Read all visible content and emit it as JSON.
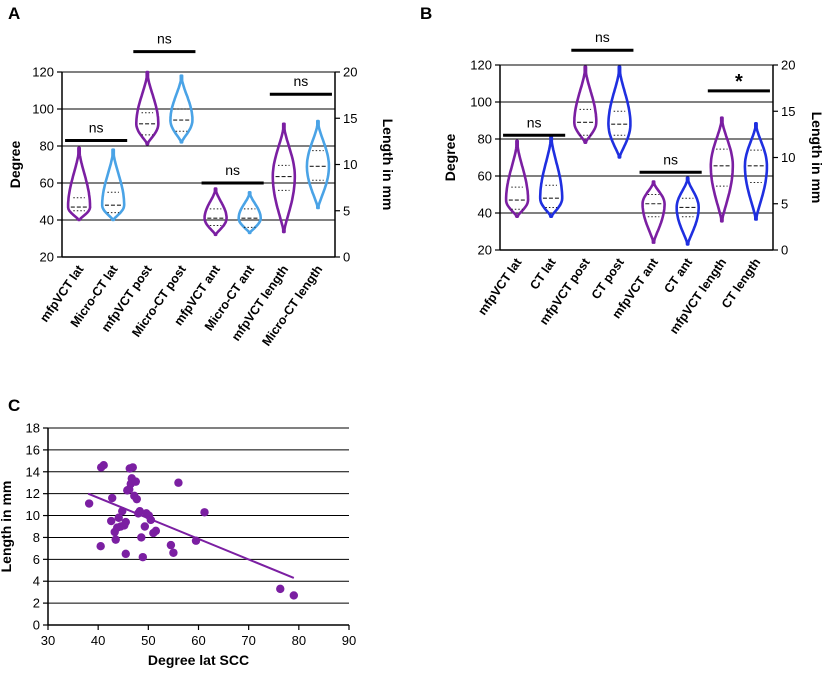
{
  "colors": {
    "purple": "#7b1fa2",
    "light_blue": "#4aa3e6",
    "blue": "#1f2fe0",
    "scatter": "#7b1fa2",
    "grid": "#000000"
  },
  "chart_data": [
    {
      "panel": "A",
      "type": "violin",
      "ylabel_left": "Degree",
      "ylabel_right": "Length in mm",
      "ylim_left": [
        20,
        120
      ],
      "yticks_left": [
        "20",
        "40",
        "60",
        "80",
        "100",
        "120"
      ],
      "ylim_right": [
        0,
        20
      ],
      "yticks_right": [
        "0",
        "5",
        "10",
        "15",
        "20"
      ],
      "categories": [
        "mfpVCT lat",
        "Micro-CT lat",
        "mfpVCT post",
        "Micro-CT post",
        "mfpVCT ant",
        "Micro-CT ant",
        "mfpVCT length",
        "Micro-CT length"
      ],
      "series": [
        {
          "name": "mfpVCT lat",
          "axis": "left",
          "color": "purple",
          "min": 40,
          "max": 79,
          "q1": 45,
          "median": 47,
          "q3": 52
        },
        {
          "name": "Micro-CT lat",
          "axis": "left",
          "color": "light_blue",
          "min": 40,
          "max": 78,
          "q1": 44,
          "median": 48,
          "q3": 55
        },
        {
          "name": "mfpVCT post",
          "axis": "left",
          "color": "purple",
          "min": 81,
          "max": 120,
          "q1": 86,
          "median": 92,
          "q3": 98
        },
        {
          "name": "Micro-CT post",
          "axis": "left",
          "color": "light_blue",
          "min": 82,
          "max": 118,
          "q1": 88,
          "median": 94,
          "q3": 100
        },
        {
          "name": "mfpVCT ant",
          "axis": "left",
          "color": "purple",
          "min": 32,
          "max": 57,
          "q1": 37,
          "median": 41,
          "q3": 46
        },
        {
          "name": "Micro-CT ant",
          "axis": "left",
          "color": "light_blue",
          "min": 33,
          "max": 55,
          "q1": 36,
          "median": 41,
          "q3": 46
        },
        {
          "name": "mfpVCT length",
          "axis": "right",
          "color": "purple",
          "min": 2.7,
          "max": 14.4,
          "q1": 7.2,
          "median": 8.7,
          "q3": 9.9
        },
        {
          "name": "Micro-CT length",
          "axis": "right",
          "color": "light_blue",
          "min": 5.3,
          "max": 14.7,
          "q1": 8.3,
          "median": 9.8,
          "q3": 11.5
        }
      ],
      "comparisons": [
        {
          "pair": [
            0,
            1
          ],
          "label": "ns",
          "y": 83
        },
        {
          "pair": [
            2,
            3
          ],
          "label": "ns",
          "y": 131
        },
        {
          "pair": [
            4,
            5
          ],
          "label": "ns",
          "y": 60
        },
        {
          "pair": [
            6,
            7
          ],
          "label": "ns",
          "y": 108
        }
      ]
    },
    {
      "panel": "B",
      "type": "violin",
      "ylabel_left": "Degree",
      "ylabel_right": "Length in mm",
      "ylim_left": [
        20,
        120
      ],
      "yticks_left": [
        "20",
        "40",
        "60",
        "80",
        "100",
        "120"
      ],
      "ylim_right": [
        0,
        20
      ],
      "yticks_right": [
        "0",
        "5",
        "10",
        "15",
        "20"
      ],
      "categories": [
        "mfpVCT lat",
        "CT lat",
        "mfpVCT post",
        "CT post",
        "mfpVCT ant",
        "CT ant",
        "mfpVCT length",
        "CT length"
      ],
      "series": [
        {
          "name": "mfpVCT lat",
          "axis": "left",
          "color": "purple",
          "min": 38,
          "max": 79,
          "q1": 42,
          "median": 47,
          "q3": 54
        },
        {
          "name": "CT lat",
          "axis": "left",
          "color": "blue",
          "min": 38,
          "max": 82,
          "q1": 43,
          "median": 48,
          "q3": 55
        },
        {
          "name": "mfpVCT post",
          "axis": "left",
          "color": "purple",
          "min": 78,
          "max": 119,
          "q1": 82,
          "median": 89,
          "q3": 96
        },
        {
          "name": "CT post",
          "axis": "left",
          "color": "blue",
          "min": 70,
          "max": 119,
          "q1": 82,
          "median": 88,
          "q3": 95
        },
        {
          "name": "mfpVCT ant",
          "axis": "left",
          "color": "purple",
          "min": 24,
          "max": 57,
          "q1": 38,
          "median": 45,
          "q3": 50
        },
        {
          "name": "CT ant",
          "axis": "left",
          "color": "blue",
          "min": 23,
          "max": 59,
          "q1": 38,
          "median": 43,
          "q3": 48
        },
        {
          "name": "mfpVCT length",
          "axis": "right",
          "color": "purple",
          "min": 3.1,
          "max": 14.3,
          "q1": 6.9,
          "median": 9.1,
          "q3": 10.9
        },
        {
          "name": "CT length",
          "axis": "right",
          "color": "blue",
          "min": 3.3,
          "max": 13.7,
          "q1": 7.3,
          "median": 9.1,
          "q3": 10.8
        }
      ],
      "comparisons": [
        {
          "pair": [
            0,
            1
          ],
          "label": "ns",
          "y": 82
        },
        {
          "pair": [
            2,
            3
          ],
          "label": "ns",
          "y": 128
        },
        {
          "pair": [
            4,
            5
          ],
          "label": "ns",
          "y": 62
        },
        {
          "pair": [
            6,
            7
          ],
          "label": "*",
          "y": 106
        }
      ]
    },
    {
      "panel": "C",
      "type": "scatter",
      "xlabel": "Degree lat SCC",
      "ylabel": "Length in mm",
      "xlim": [
        30,
        90
      ],
      "xticks": [
        "30",
        "40",
        "50",
        "60",
        "70",
        "80",
        "90"
      ],
      "ylim": [
        0,
        18
      ],
      "yticks": [
        "0",
        "2",
        "4",
        "6",
        "8",
        "10",
        "12",
        "14",
        "16",
        "18"
      ],
      "points": [
        [
          38.2,
          11.1
        ],
        [
          40.6,
          14.4
        ],
        [
          41.1,
          14.6
        ],
        [
          40.5,
          7.2
        ],
        [
          42.8,
          11.6
        ],
        [
          42.6,
          9.5
        ],
        [
          43.3,
          8.5
        ],
        [
          43.5,
          7.8
        ],
        [
          43.8,
          8.9
        ],
        [
          44.1,
          9.8
        ],
        [
          44.5,
          9.0
        ],
        [
          44.8,
          10.4
        ],
        [
          45.2,
          9.1
        ],
        [
          45.5,
          6.5
        ],
        [
          45.5,
          9.4
        ],
        [
          45.8,
          12.3
        ],
        [
          46.2,
          12.4
        ],
        [
          46.5,
          12.9
        ],
        [
          46.7,
          13.4
        ],
        [
          46.3,
          14.3
        ],
        [
          46.9,
          14.4
        ],
        [
          47.2,
          11.8
        ],
        [
          47.5,
          13.1
        ],
        [
          47.7,
          11.5
        ],
        [
          48.0,
          10.2
        ],
        [
          48.3,
          10.4
        ],
        [
          48.6,
          8.0
        ],
        [
          48.9,
          6.2
        ],
        [
          49.3,
          9.0
        ],
        [
          49.6,
          10.2
        ],
        [
          50.1,
          10.0
        ],
        [
          50.5,
          9.6
        ],
        [
          51.0,
          8.4
        ],
        [
          51.5,
          8.6
        ],
        [
          54.5,
          7.3
        ],
        [
          55.0,
          6.6
        ],
        [
          56.0,
          13.0
        ],
        [
          59.5,
          7.7
        ],
        [
          61.2,
          10.3
        ],
        [
          76.3,
          3.3
        ],
        [
          79.0,
          2.7
        ]
      ],
      "fit_line": {
        "x": [
          38,
          79
        ],
        "y": [
          12.0,
          4.3
        ]
      }
    }
  ],
  "panels": {
    "A": "A",
    "B": "B",
    "C": "C"
  }
}
